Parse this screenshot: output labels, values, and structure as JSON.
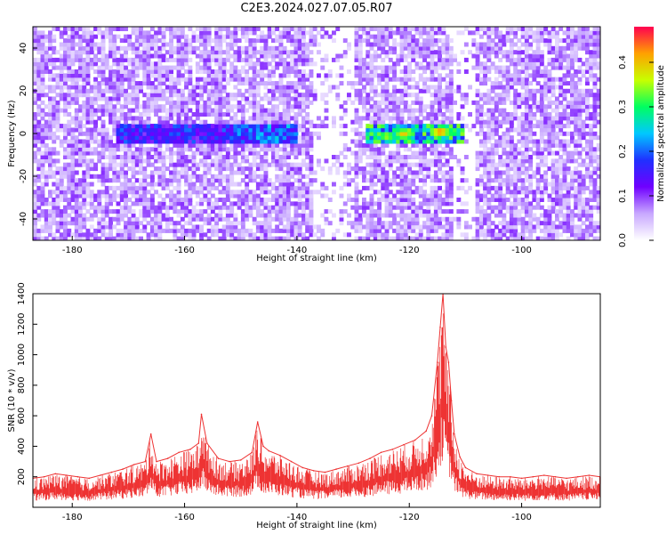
{
  "figure": {
    "title": "C2E3.2024.027.07.05.R07"
  },
  "chart_data": [
    {
      "type": "heatmap",
      "title": "C2E3.2024.027.07.05.R07",
      "xlabel": "Height of straight line (km)",
      "ylabel": "Frequency (Hz)",
      "xlim": [
        -187,
        -86
      ],
      "ylim": [
        -50,
        50
      ],
      "x_ticks": [
        -180,
        -160,
        -140,
        -120,
        -100
      ],
      "y_ticks": [
        -40,
        -20,
        0,
        20,
        40
      ],
      "colorbar": {
        "label": "Normalized spectral amplitude",
        "range": [
          0.0,
          0.48
        ],
        "ticks": [
          0.0,
          0.1,
          0.2,
          0.3,
          0.4
        ],
        "colormap": [
          "#ffffff",
          "#c8a8ff",
          "#7000ff",
          "#2030ff",
          "#00c8ff",
          "#00ff60",
          "#c8ff00",
          "#ffa000",
          "#ff0050"
        ]
      },
      "features": [
        {
          "description": "noise floor",
          "x_range": [
            -187,
            -86
          ],
          "y_range": [
            -50,
            50
          ],
          "level": 0.08
        },
        {
          "description": "signal band",
          "x_range": [
            -172,
            -152
          ],
          "y_center": 0,
          "level": 0.18
        },
        {
          "description": "signal band",
          "x_range": [
            -152,
            -140
          ],
          "y_center": 0,
          "level": 0.22
        },
        {
          "description": "signal band",
          "x_range": [
            -128,
            -110
          ],
          "y_center": 0,
          "level": 0.3
        },
        {
          "description": "peak",
          "x": -114.5,
          "y": 1,
          "level": 0.46
        },
        {
          "description": "peak",
          "x": -121,
          "y": 0,
          "level": 0.42
        },
        {
          "description": "peak",
          "x": -124,
          "y": -1,
          "level": 0.38
        }
      ]
    },
    {
      "type": "line",
      "xlabel": "Height of straight line (km)",
      "ylabel": "SNR (10 * v/v)",
      "xlim": [
        -187,
        -86
      ],
      "ylim": [
        0,
        1400
      ],
      "x_ticks": [
        -180,
        -160,
        -140,
        -120,
        -100
      ],
      "y_ticks": [
        200,
        400,
        600,
        800,
        1000,
        1200,
        1400
      ],
      "color": "#ee3333",
      "series": [
        {
          "x": [
            -187,
            -185,
            -183,
            -181,
            -179,
            -177,
            -175,
            -173,
            -171,
            -169,
            -167,
            -166,
            -165,
            -163,
            -161,
            -159,
            -157.5,
            -157,
            -156,
            -154,
            -152,
            -150,
            -148,
            -147,
            -146,
            -145,
            -143,
            -141,
            -139,
            -137,
            -135,
            -133,
            -131,
            -129,
            -127,
            -125,
            -123,
            -121,
            -119,
            -117,
            -116,
            -115,
            -114.5,
            -114,
            -113.5,
            -113,
            -112.5,
            -112,
            -111,
            -110,
            -108,
            -106,
            -104,
            -102,
            -100,
            -98,
            -96,
            -94,
            -92,
            -90,
            -88,
            -86
          ],
          "values": [
            190,
            200,
            220,
            210,
            200,
            190,
            210,
            230,
            250,
            280,
            300,
            480,
            300,
            320,
            360,
            380,
            420,
            610,
            420,
            320,
            300,
            310,
            360,
            560,
            400,
            370,
            340,
            300,
            260,
            240,
            230,
            250,
            270,
            290,
            320,
            360,
            380,
            410,
            440,
            500,
            600,
            950,
            1180,
            1400,
            1050,
            950,
            700,
            480,
            330,
            260,
            220,
            210,
            200,
            200,
            190,
            200,
            210,
            200,
            190,
            200,
            210,
            200
          ]
        }
      ]
    }
  ]
}
